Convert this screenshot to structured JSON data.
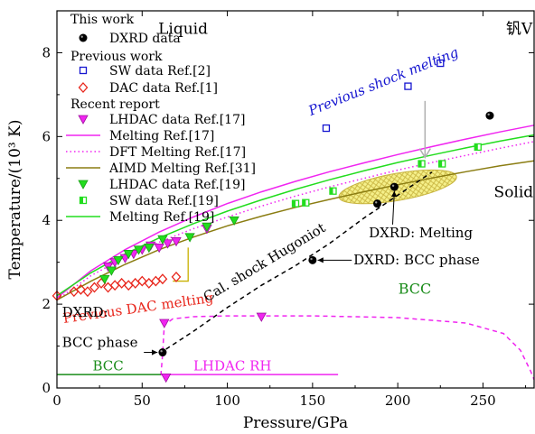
{
  "chart_data": {
    "type": "scatter",
    "xlabel": "Pressure/GPa",
    "ylabel": "Temperature/(10³ K)",
    "xlim": [
      0,
      280
    ],
    "ylim": [
      0,
      9
    ],
    "xticks": [
      0,
      50,
      100,
      150,
      200,
      250
    ],
    "yticks": [
      0,
      2,
      4,
      6,
      8
    ],
    "corner_label": "钒V",
    "region_labels": {
      "liquid": "Liquid",
      "solid": "Solid",
      "bcc_mid": "BCC",
      "bcc_low": "BCC",
      "lhdac_rh": "LHDAC RH"
    },
    "legend": {
      "position": "top-left",
      "headers": [
        "This work",
        "Previous work",
        "Recent report"
      ],
      "entries": [
        {
          "group": 0,
          "label": "DXRD data",
          "series": "dxrd"
        },
        {
          "group": 1,
          "label": "SW data Ref.[2]",
          "series": "sw_ref2"
        },
        {
          "group": 1,
          "label": "DAC data Ref.[1]",
          "series": "dac_ref1"
        },
        {
          "group": 2,
          "label": "LHDAC data Ref.[17]",
          "series": "lhdac_ref17"
        },
        {
          "group": 2,
          "label": "Melting Ref.[17]",
          "series": "melting_ref17"
        },
        {
          "group": 2,
          "label": "DFT Melting Ref.[17]",
          "series": "dft_ref17"
        },
        {
          "group": 2,
          "label": "AIMD Melting Ref.[31]",
          "series": "aimd_ref31"
        },
        {
          "group": 2,
          "label": "LHDAC data Ref.[19]",
          "series": "lhdac_ref19"
        },
        {
          "group": 2,
          "label": "SW data Ref.[19]",
          "series": "sw_ref19"
        },
        {
          "group": 2,
          "label": "Melting Ref.[19]",
          "series": "melting_ref19"
        }
      ]
    },
    "series": [
      {
        "key": "dxrd",
        "name": "DXRD data",
        "marker": "filled-circle",
        "color": "#000000",
        "points": [
          [
            62,
            0.85
          ],
          [
            150,
            3.05
          ],
          [
            188,
            4.4
          ],
          [
            198,
            4.8
          ],
          [
            254,
            6.5
          ]
        ]
      },
      {
        "key": "sw_ref2",
        "name": "SW data Ref.[2]",
        "marker": "open-square",
        "color": "#1515d0",
        "points": [
          [
            158,
            6.2
          ],
          [
            206,
            7.2
          ],
          [
            225,
            7.75
          ]
        ]
      },
      {
        "key": "dac_ref1",
        "name": "DAC data Ref.[1]",
        "marker": "open-diamond",
        "color": "#e8261c",
        "points": [
          [
            0,
            2.2
          ],
          [
            10,
            2.3
          ],
          [
            14,
            2.35
          ],
          [
            18,
            2.3
          ],
          [
            22,
            2.4
          ],
          [
            26,
            2.5
          ],
          [
            30,
            2.4
          ],
          [
            34,
            2.45
          ],
          [
            38,
            2.5
          ],
          [
            42,
            2.45
          ],
          [
            46,
            2.5
          ],
          [
            50,
            2.55
          ],
          [
            54,
            2.5
          ],
          [
            58,
            2.55
          ],
          [
            62,
            2.6
          ],
          [
            70,
            2.65
          ]
        ]
      },
      {
        "key": "lhdac_ref17",
        "name": "LHDAC data Ref.[17]",
        "marker": "down-triangle",
        "color": "#f025f0",
        "points": [
          [
            30,
            2.9
          ],
          [
            34,
            3.0
          ],
          [
            40,
            3.1
          ],
          [
            45,
            3.2
          ],
          [
            50,
            3.3
          ],
          [
            55,
            3.4
          ],
          [
            60,
            3.35
          ],
          [
            65,
            3.45
          ],
          [
            70,
            3.5
          ],
          [
            88,
            3.8
          ],
          [
            63,
            1.55
          ],
          [
            120,
            1.7
          ],
          [
            64,
            0.25
          ]
        ]
      },
      {
        "key": "melting_ref17",
        "name": "Melting Ref.[17]",
        "line": "solid",
        "color": "#f025f0",
        "x": [
          0,
          20,
          40,
          60,
          80,
          100,
          120,
          140,
          160,
          180,
          200,
          220,
          240,
          260,
          280
        ],
        "y": [
          2.15,
          2.8,
          3.3,
          3.72,
          4.08,
          4.4,
          4.68,
          4.93,
          5.16,
          5.37,
          5.57,
          5.76,
          5.94,
          6.11,
          6.27
        ]
      },
      {
        "key": "dft_ref17",
        "name": "DFT Melting Ref.[17]",
        "line": "dotted",
        "color": "#f025f0",
        "x": [
          0,
          20,
          40,
          60,
          80,
          100,
          120,
          140,
          160,
          180,
          200,
          220,
          240,
          260,
          280
        ],
        "y": [
          2.1,
          2.68,
          3.12,
          3.48,
          3.8,
          4.08,
          4.34,
          4.58,
          4.8,
          5.0,
          5.2,
          5.38,
          5.55,
          5.72,
          5.88
        ]
      },
      {
        "key": "aimd_ref31",
        "name": "AIMD Melting Ref.[31]",
        "line": "solid",
        "color": "#8b7d12",
        "x": [
          0,
          20,
          40,
          60,
          80,
          100,
          120,
          140,
          160,
          180,
          200,
          220,
          240,
          260,
          280
        ],
        "y": [
          2.1,
          2.55,
          2.95,
          3.3,
          3.6,
          3.87,
          4.1,
          4.31,
          4.5,
          4.68,
          4.85,
          5.01,
          5.16,
          5.3,
          5.42
        ]
      },
      {
        "key": "lhdac_ref19",
        "name": "LHDAC data Ref.[19]",
        "marker": "filled-down-triangle",
        "color": "#22dd1e",
        "points": [
          [
            28,
            2.6
          ],
          [
            32,
            2.8
          ],
          [
            36,
            3.05
          ],
          [
            42,
            3.2
          ],
          [
            48,
            3.3
          ],
          [
            54,
            3.35
          ],
          [
            62,
            3.55
          ],
          [
            78,
            3.6
          ],
          [
            88,
            3.85
          ],
          [
            104,
            4.0
          ]
        ]
      },
      {
        "key": "sw_ref19",
        "name": "SW data Ref.[19]",
        "marker": "half-square",
        "color": "#22dd1e",
        "points": [
          [
            140,
            4.4
          ],
          [
            146,
            4.42
          ],
          [
            162,
            4.7
          ],
          [
            214,
            5.35
          ],
          [
            226,
            5.35
          ],
          [
            247,
            5.75
          ]
        ]
      },
      {
        "key": "melting_ref19",
        "name": "Melting Ref.[19]",
        "line": "solid",
        "color": "#22dd1e",
        "x": [
          0,
          20,
          40,
          60,
          80,
          100,
          120,
          140,
          160,
          180,
          200,
          220,
          240,
          260,
          280
        ],
        "y": [
          2.2,
          2.75,
          3.2,
          3.58,
          3.92,
          4.22,
          4.49,
          4.74,
          4.97,
          5.18,
          5.38,
          5.56,
          5.73,
          5.89,
          6.04
        ]
      },
      {
        "key": "hugoniot",
        "name": "Cal. shock Hugoniot",
        "line": "dashed",
        "color": "#000000",
        "x": [
          60,
          80,
          100,
          120,
          140,
          160,
          180,
          200,
          220
        ],
        "y": [
          0.82,
          1.35,
          1.92,
          2.45,
          2.92,
          3.45,
          4.05,
          4.6,
          5.15
        ]
      },
      {
        "key": "bcc_rh_boundary",
        "name": "",
        "line": "dashed",
        "color": "#f025f0",
        "x": [
          61,
          62,
          63,
          68,
          80,
          100,
          120,
          150,
          200,
          240,
          262,
          272,
          278,
          280
        ],
        "y": [
          0.3,
          0.8,
          1.5,
          1.65,
          1.7,
          1.72,
          1.72,
          1.72,
          1.68,
          1.55,
          1.3,
          0.9,
          0.4,
          0.2
        ]
      },
      {
        "key": "bcc_green_line",
        "name": "",
        "line": "solid",
        "color": "#1a8c1a",
        "x": [
          0,
          61
        ],
        "y": [
          0.32,
          0.32
        ]
      },
      {
        "key": "lhdac_rh_range",
        "name": "",
        "line": "solid",
        "color": "#f025f0",
        "x": [
          61,
          165
        ],
        "y": [
          0.32,
          0.32
        ]
      }
    ],
    "annotations": [
      {
        "key": "prev_shock",
        "text": "Previous shock melting",
        "color": "#1515d0"
      },
      {
        "key": "prev_dac",
        "text": "Previous DAC melting",
        "color": "#e8261c"
      },
      {
        "key": "hugoniot_label",
        "text": "Cal. shock Hugoniot",
        "color": "#000000"
      },
      {
        "key": "dxrd_melting",
        "text": "DXRD: Melting",
        "color": "#000000"
      },
      {
        "key": "dxrd_bcc_phase",
        "text": "DXRD: BCC phase",
        "color": "#000000"
      },
      {
        "key": "dxrd_low_1",
        "text": "DXRD:",
        "color": "#000000"
      },
      {
        "key": "dxrd_low_2",
        "text": "BCC phase",
        "color": "#000000"
      }
    ],
    "melting_region": {
      "x_range": [
        165,
        235
      ],
      "y_center": 4.8,
      "fill": "#f5f08a",
      "hatch": "#c8b440"
    }
  }
}
